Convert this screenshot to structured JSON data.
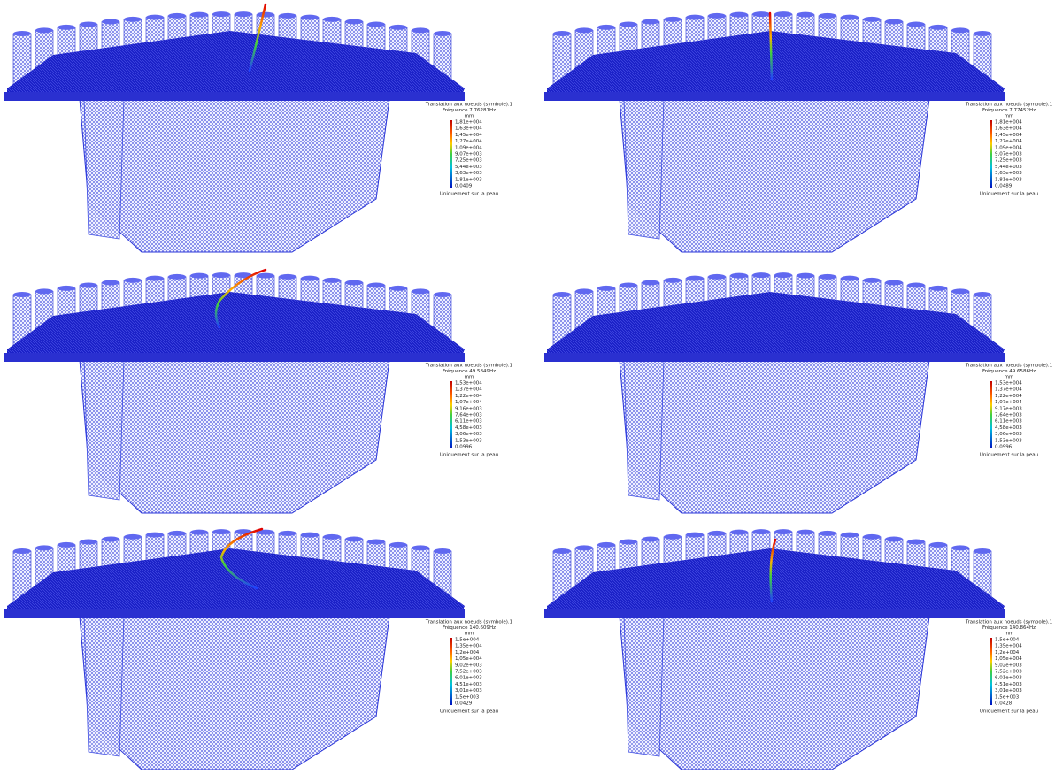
{
  "panels": [
    {
      "legend": {
        "title": "Translation aux noeuds (symbole).1",
        "frequency": "Fréquence 7.76281Hz",
        "unit": "mm",
        "values": [
          "1,81e+004",
          "1,63e+004",
          "1,45e+004",
          "1,27e+004",
          "1,09e+004",
          "9,07e+003",
          "7,25e+003",
          "5,44e+003",
          "3,63e+003",
          "1,81e+003",
          "0.0409"
        ],
        "footer": "Uniquement sur la peau"
      }
    },
    {
      "legend": {
        "title": "Translation aux noeuds (symbole).1",
        "frequency": "Fréquence 7.77452Hz",
        "unit": "mm",
        "values": [
          "1,81e+004",
          "1,63e+004",
          "1,45e+004",
          "1,27e+004",
          "1,09e+004",
          "9,07e+003",
          "7,25e+003",
          "5,44e+003",
          "3,63e+003",
          "1,81e+003",
          "0,0489"
        ],
        "footer": "Uniquement sur la peau"
      }
    },
    {
      "legend": {
        "title": "Translation aux noeuds (symbole).1",
        "frequency": "Fréquence 49.5849Hz",
        "unit": "mm",
        "values": [
          "1,53e+004",
          "1,37e+004",
          "1,22e+004",
          "1,07e+004",
          "9,16e+003",
          "7,64e+003",
          "6,11e+003",
          "4,58e+003",
          "3,06e+003",
          "1,53e+003",
          "0.0996"
        ],
        "footer": "Uniquement sur la peau"
      }
    },
    {
      "legend": {
        "title": "Translation aux noeuds (symbole).1",
        "frequency": "Fréquence 49.6586Hz",
        "unit": "mm",
        "values": [
          "1,53e+004",
          "1,37e+004",
          "1,22e+004",
          "1,07e+004",
          "9,17e+003",
          "7,64e+003",
          "6,11e+003",
          "4,58e+003",
          "3,06e+003",
          "1,53e+003",
          "0,0996"
        ],
        "footer": "Uniquement sur la peau"
      }
    },
    {
      "legend": {
        "title": "Translation aux noeuds (symbole).1",
        "frequency": "Fréquence 140.609Hz",
        "unit": "mm",
        "values": [
          "1,5e+004",
          "1,35e+004",
          "1,2e+004",
          "1,05e+004",
          "9,02e+003",
          "7,52e+003",
          "6,01e+003",
          "4,51e+003",
          "3,01e+003",
          "1,5e+003",
          "0.0429"
        ],
        "footer": "Uniquement sur la peau"
      }
    },
    {
      "legend": {
        "title": "Translation aux noeuds (symbole).1",
        "frequency": "Fréquence 140.864Hz",
        "unit": "mm",
        "values": [
          "1,5e+004",
          "1,35e+004",
          "1,2e+004",
          "1,05e+004",
          "9,02e+003",
          "7,52e+003",
          "6,01e+003",
          "4,51e+003",
          "3,01e+003",
          "1,5e+003",
          "0.0428"
        ],
        "footer": "Uniquement sur la peau"
      }
    }
  ]
}
